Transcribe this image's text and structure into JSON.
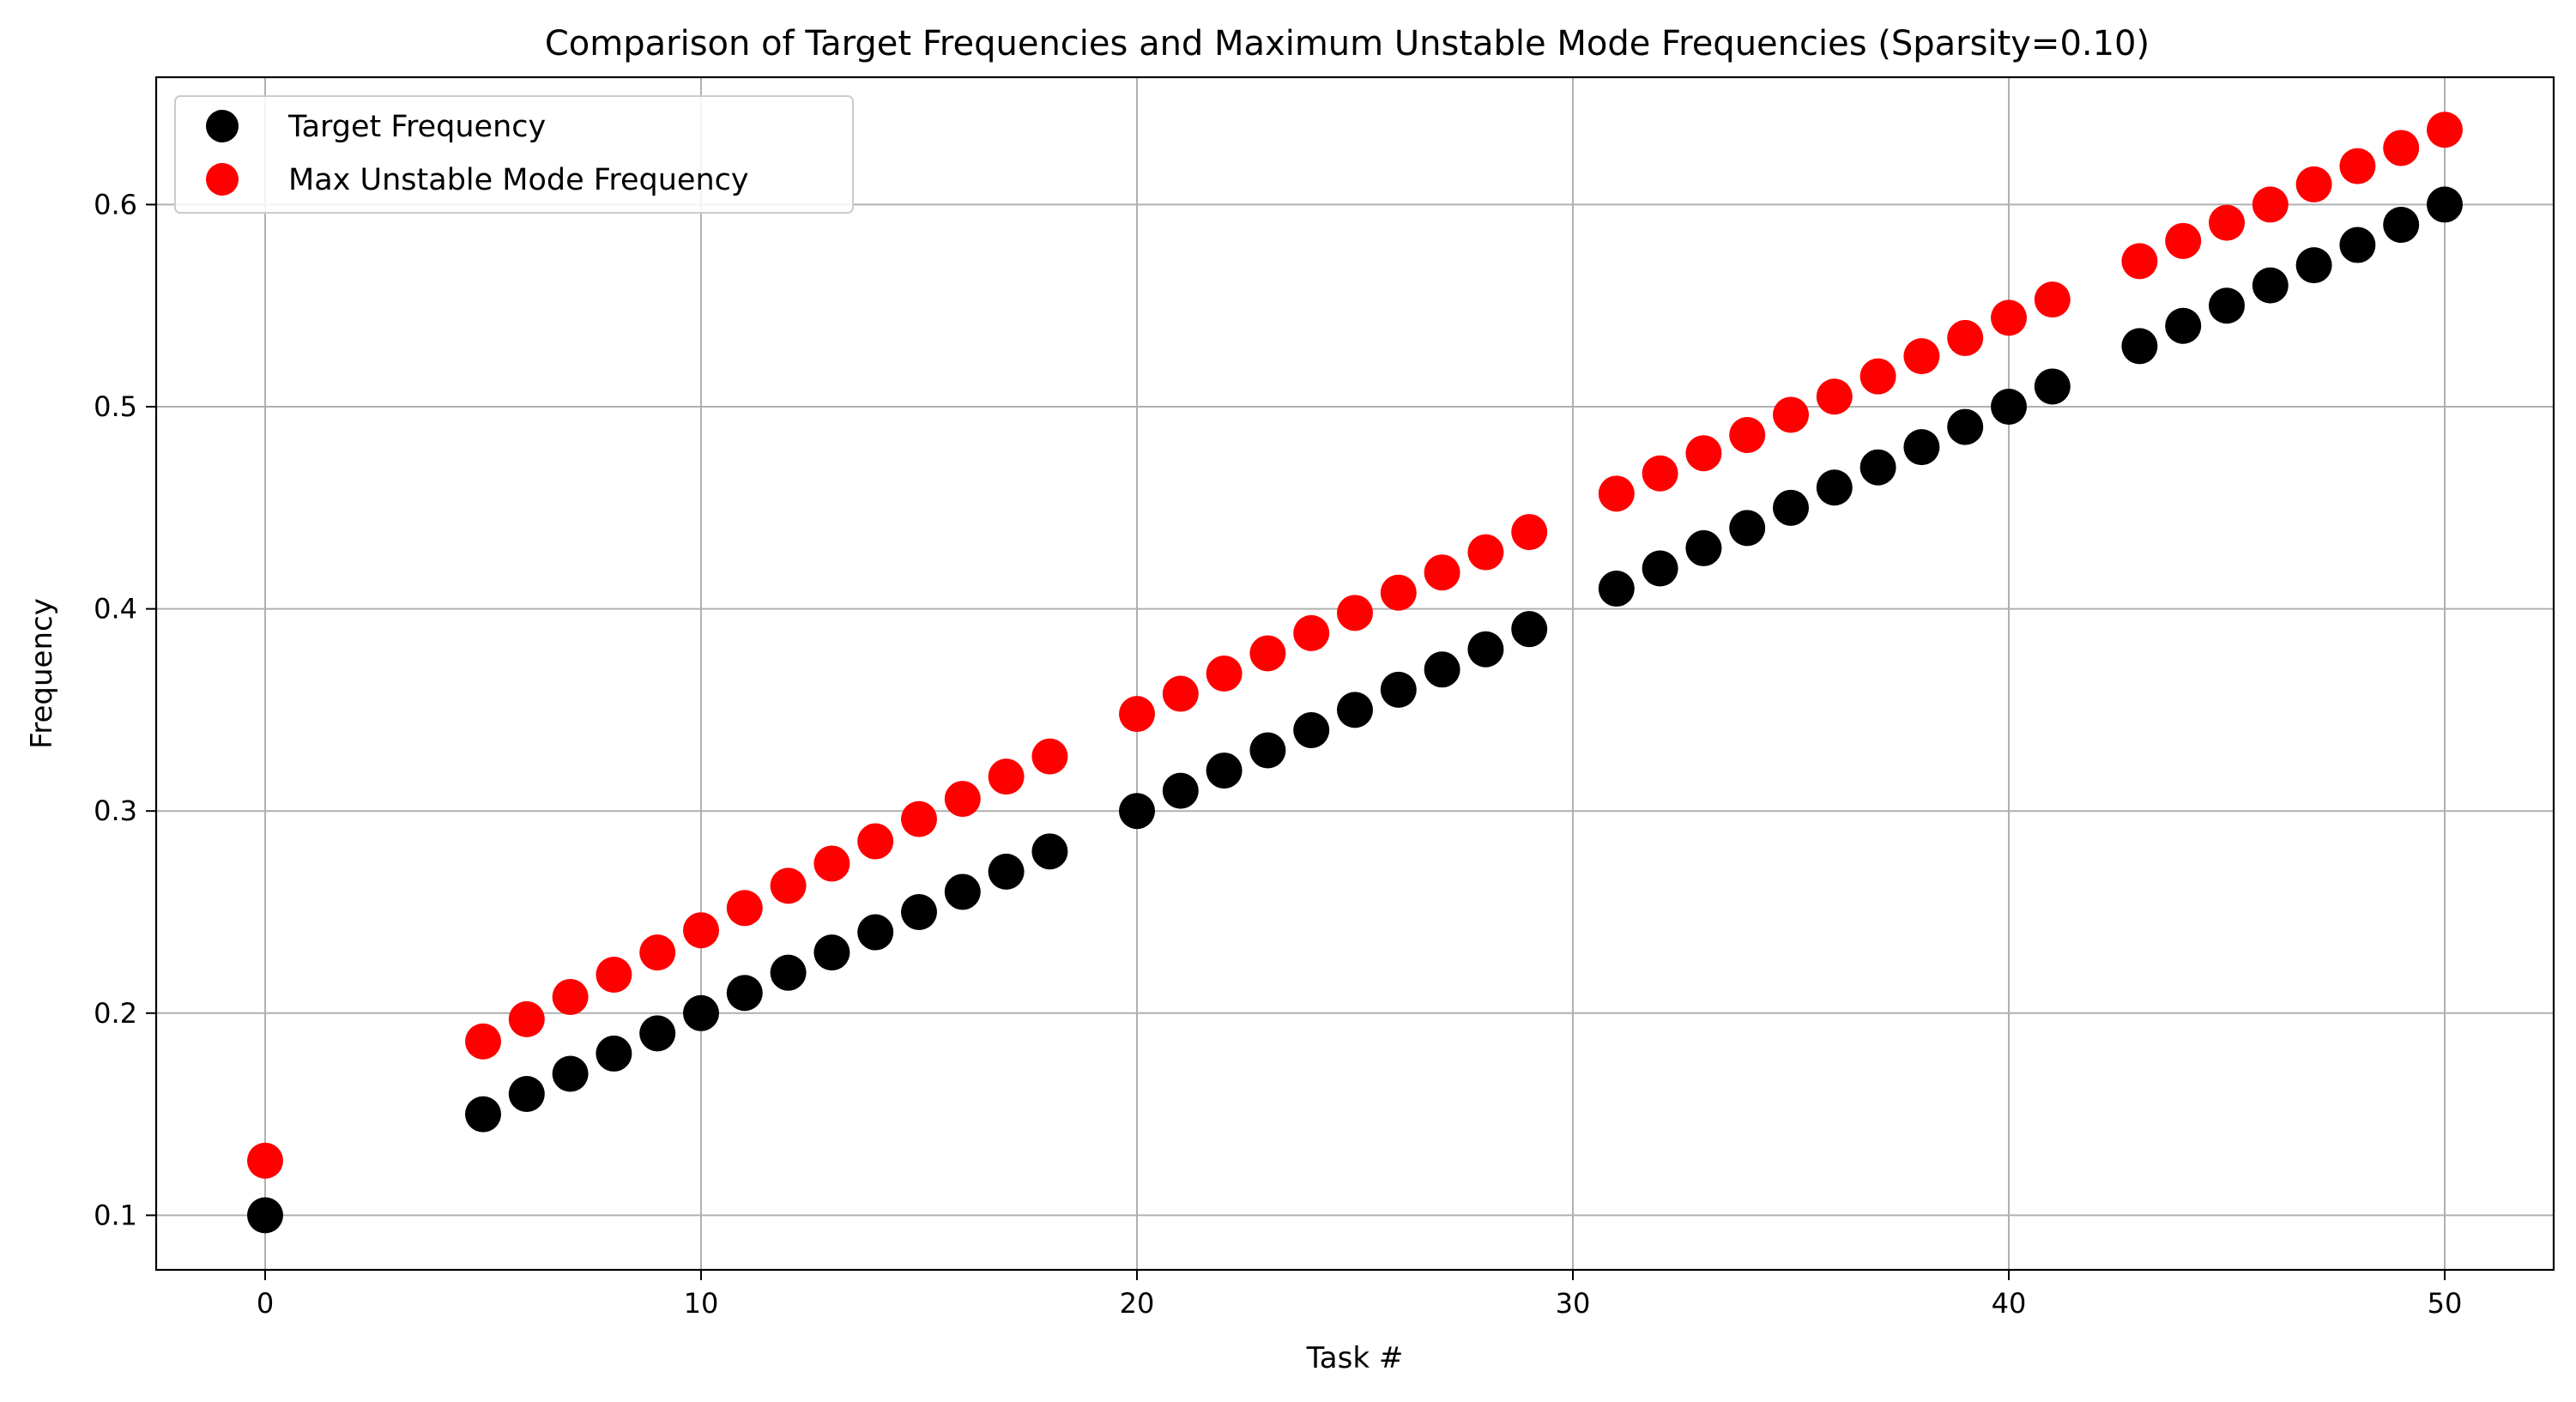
{
  "chart_data": {
    "type": "scatter",
    "title": "Comparison of Target Frequencies and Maximum Unstable Mode Frequencies (Sparsity=0.10)",
    "xlabel": "Task #",
    "ylabel": "Frequency",
    "xlim": [
      -2.5,
      52.5
    ],
    "ylim": [
      0.073,
      0.663
    ],
    "xticks": [
      0,
      10,
      20,
      30,
      40,
      50
    ],
    "yticks": [
      0.1,
      0.2,
      0.3,
      0.4,
      0.5,
      0.6
    ],
    "xtick_labels": [
      "0",
      "10",
      "20",
      "30",
      "40",
      "50"
    ],
    "ytick_labels": [
      "0.1",
      "0.2",
      "0.3",
      "0.4",
      "0.5",
      "0.6"
    ],
    "grid": true,
    "legend_position": "top-left",
    "series": [
      {
        "name": "Target Frequency",
        "color": "#000000",
        "x": [
          0,
          5,
          6,
          7,
          8,
          9,
          10,
          11,
          12,
          13,
          14,
          15,
          16,
          17,
          18,
          20,
          21,
          22,
          23,
          24,
          25,
          26,
          27,
          28,
          29,
          31,
          32,
          33,
          34,
          35,
          36,
          37,
          38,
          39,
          40,
          41,
          43,
          44,
          45,
          46,
          47,
          48,
          49,
          50
        ],
        "y": [
          0.1,
          0.15,
          0.16,
          0.17,
          0.18,
          0.19,
          0.2,
          0.21,
          0.22,
          0.23,
          0.24,
          0.25,
          0.26,
          0.27,
          0.28,
          0.3,
          0.31,
          0.32,
          0.33,
          0.34,
          0.35,
          0.36,
          0.37,
          0.38,
          0.39,
          0.41,
          0.42,
          0.43,
          0.44,
          0.45,
          0.46,
          0.47,
          0.48,
          0.49,
          0.5,
          0.51,
          0.53,
          0.54,
          0.55,
          0.56,
          0.57,
          0.58,
          0.59,
          0.6
        ]
      },
      {
        "name": "Max Unstable Mode Frequency",
        "color": "#ff0000",
        "x": [
          0,
          5,
          6,
          7,
          8,
          9,
          10,
          11,
          12,
          13,
          14,
          15,
          16,
          17,
          18,
          20,
          21,
          22,
          23,
          24,
          25,
          26,
          27,
          28,
          29,
          31,
          32,
          33,
          34,
          35,
          36,
          37,
          38,
          39,
          40,
          41,
          43,
          44,
          45,
          46,
          47,
          48,
          49,
          50
        ],
        "y": [
          0.127,
          0.186,
          0.197,
          0.208,
          0.219,
          0.23,
          0.241,
          0.252,
          0.263,
          0.274,
          0.285,
          0.296,
          0.306,
          0.317,
          0.327,
          0.348,
          0.358,
          0.368,
          0.378,
          0.388,
          0.398,
          0.408,
          0.418,
          0.428,
          0.438,
          0.457,
          0.467,
          0.477,
          0.486,
          0.496,
          0.505,
          0.515,
          0.525,
          0.534,
          0.544,
          0.553,
          0.572,
          0.582,
          0.591,
          0.6,
          0.61,
          0.619,
          0.628,
          0.637
        ]
      }
    ]
  }
}
